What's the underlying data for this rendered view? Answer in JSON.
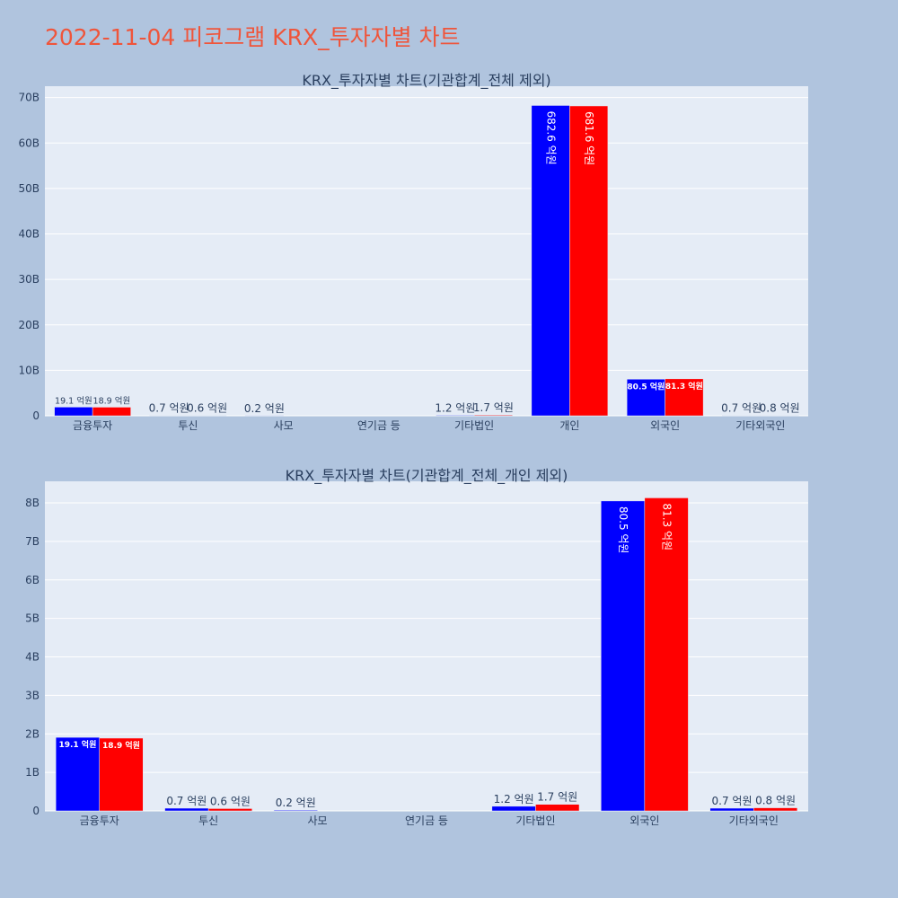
{
  "page_title": "2022-11-04 피코그램 KRX_투자자별 차트",
  "colors": {
    "page_bg": "#b0c4de",
    "plot_bg": "#e5ecf6",
    "title": "#ef553b",
    "series_a": "#0000ff",
    "series_b": "#ff0000"
  },
  "chart_data": [
    {
      "type": "bar",
      "title": "KRX_투자자별 차트(기관합계_전체 제외)",
      "categories": [
        "금융투자",
        "투신",
        "사모",
        "연기금 등",
        "기타법인",
        "개인",
        "외국인",
        "기타외국인"
      ],
      "series": [
        {
          "color": "#0000ff",
          "values": [
            1910000000,
            70000000,
            20000000,
            0,
            120000000,
            68260000000,
            8050000000,
            70000000
          ],
          "labels": [
            "19.1 억원",
            "0.7 억원",
            "0.2 억원",
            "",
            "1.2 억원",
            "682.6 억원",
            "80.5 억원",
            "0.7 억원"
          ]
        },
        {
          "color": "#ff0000",
          "values": [
            1890000000,
            60000000,
            0,
            0,
            170000000,
            68160000000,
            8130000000,
            80000000
          ],
          "labels": [
            "18.9 억원",
            "0.6 억원",
            "",
            "",
            "1.7 억원",
            "681.6 억원",
            "81.3 억원",
            "0.8 억원"
          ]
        }
      ],
      "yticks": [
        0,
        10000000000,
        20000000000,
        30000000000,
        40000000000,
        50000000000,
        60000000000,
        70000000000
      ],
      "yticklabels": [
        "0",
        "10B",
        "20B",
        "30B",
        "40B",
        "50B",
        "60B",
        "70B"
      ],
      "ylim": [
        0,
        72500000000
      ],
      "grid": true
    },
    {
      "type": "bar",
      "title": "KRX_투자자별 차트(기관합계_전체_개인 제외)",
      "categories": [
        "금융투자",
        "투신",
        "사모",
        "연기금 등",
        "기타법인",
        "외국인",
        "기타외국인"
      ],
      "series": [
        {
          "color": "#0000ff",
          "values": [
            1910000000,
            70000000,
            20000000,
            0,
            120000000,
            8050000000,
            70000000
          ],
          "labels": [
            "19.1 억원",
            "0.7 억원",
            "0.2 억원",
            "",
            "1.2 억원",
            "80.5 억원",
            "0.7 억원"
          ]
        },
        {
          "color": "#ff0000",
          "values": [
            1890000000,
            60000000,
            0,
            0,
            170000000,
            8130000000,
            80000000
          ],
          "labels": [
            "18.9 억원",
            "0.6 억원",
            "",
            "",
            "1.7 억원",
            "81.3 억원",
            "0.8 억원"
          ]
        }
      ],
      "yticks": [
        0,
        1000000000,
        2000000000,
        3000000000,
        4000000000,
        5000000000,
        6000000000,
        7000000000,
        8000000000
      ],
      "yticklabels": [
        "0",
        "1B",
        "2B",
        "3B",
        "4B",
        "5B",
        "6B",
        "7B",
        "8B"
      ],
      "ylim": [
        0,
        8560000000
      ],
      "grid": true
    }
  ]
}
